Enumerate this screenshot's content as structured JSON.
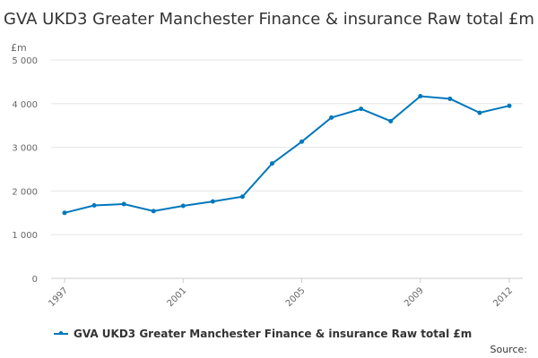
{
  "chart_data": {
    "type": "line",
    "title": "GVA UKD3 Greater Manchester Finance & insurance Raw total £m",
    "ylabel": "£m",
    "xlabel": "",
    "ylim": [
      0,
      5000
    ],
    "yticks": [
      0,
      1000,
      2000,
      3000,
      4000,
      5000
    ],
    "ytick_labels": [
      "0",
      "1 000",
      "2 000",
      "3 000",
      "4 000",
      "5 000"
    ],
    "xlim": [
      1997,
      2012
    ],
    "xticks": [
      1997,
      2001,
      2005,
      2009,
      2012
    ],
    "xtick_labels": [
      "1997",
      "2001",
      "2005",
      "2009",
      "2012"
    ],
    "series": [
      {
        "name": "GVA UKD3 Greater Manchester Finance & insurance Raw total £m",
        "color": "#0077bb",
        "x": [
          1997,
          1998,
          1999,
          2000,
          2001,
          2002,
          2003,
          2004,
          2005,
          2006,
          2007,
          2008,
          2009,
          2010,
          2011,
          2012
        ],
        "values": [
          1500,
          1670,
          1700,
          1540,
          1660,
          1760,
          1870,
          2630,
          3130,
          3680,
          3880,
          3600,
          4170,
          4110,
          3790,
          3950
        ]
      }
    ],
    "grid": true,
    "legend": "bottom"
  },
  "footer": {
    "source_label": "Source:"
  }
}
